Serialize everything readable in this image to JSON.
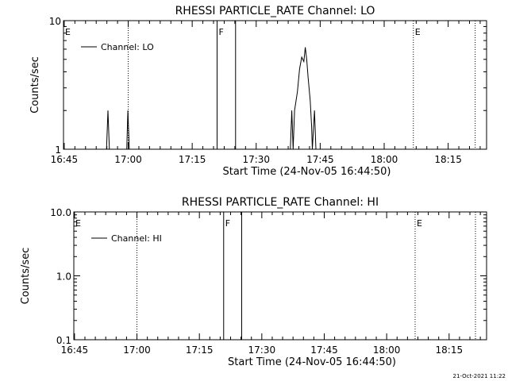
{
  "footer": {
    "timestamp": "21-Oct-2021 11:22"
  },
  "chart_data": [
    {
      "type": "line",
      "title": "RHESSI PARTICLE_RATE Channel: LO",
      "xlabel": "Start Time (24-Nov-05 16:44:50)",
      "ylabel": "Counts/sec",
      "y_scale": "log",
      "ylim": [
        1,
        10
      ],
      "y_ticks": [
        {
          "value": 1,
          "label": "1"
        },
        {
          "value": 10,
          "label": "10"
        }
      ],
      "xlim": [
        "16:44:50",
        "18:24:00"
      ],
      "x_ticks": [
        "16:45",
        "17:00",
        "17:15",
        "17:30",
        "17:45",
        "18:00",
        "18:15"
      ],
      "legend": {
        "label": "Channel: LO",
        "placement": "top-left"
      },
      "markers": [
        {
          "time": "16:44:50",
          "label": "E",
          "style": "none"
        },
        {
          "time": "17:00:00",
          "label": "",
          "style": "dotted"
        },
        {
          "time": "17:20:50",
          "label": "F",
          "style": "solid"
        },
        {
          "time": "17:25:10",
          "label": "",
          "style": "solid"
        },
        {
          "time": "18:06:50",
          "label": "E",
          "style": "dotted"
        },
        {
          "time": "18:21:20",
          "label": "",
          "style": "dotted"
        }
      ],
      "series": [
        {
          "name": "Channel: LO",
          "points": [
            [
              "16:54:55",
              1
            ],
            [
              "16:55:15",
              2.0
            ],
            [
              "16:55:35",
              1
            ],
            [
              "16:59:40",
              1
            ],
            [
              "16:59:55",
              2.0
            ],
            [
              "17:00:15",
              1
            ],
            [
              "17:38:00",
              1
            ],
            [
              "17:38:20",
              2.0
            ],
            [
              "17:38:40",
              1
            ],
            [
              "17:39:00",
              2.0
            ],
            [
              "17:39:40",
              2.8
            ],
            [
              "17:40:10",
              4.2
            ],
            [
              "17:40:40",
              5.2
            ],
            [
              "17:41:10",
              4.8
            ],
            [
              "17:41:30",
              6.2
            ],
            [
              "17:41:50",
              5.0
            ],
            [
              "17:42:10",
              3.6
            ],
            [
              "17:42:40",
              2.4
            ],
            [
              "17:43:00",
              1.5
            ],
            [
              "17:43:10",
              1
            ],
            [
              "17:43:40",
              2.0
            ],
            [
              "17:44:00",
              1
            ]
          ]
        }
      ]
    },
    {
      "type": "line",
      "title": "RHESSI PARTICLE_RATE Channel: HI",
      "xlabel": "Start Time (24-Nov-05 16:44:50)",
      "ylabel": "Counts/sec",
      "y_scale": "log",
      "ylim": [
        0.1,
        10
      ],
      "y_ticks": [
        {
          "value": 0.1,
          "label": "0.1"
        },
        {
          "value": 1,
          "label": "1.0"
        },
        {
          "value": 10,
          "label": "10.0"
        }
      ],
      "xlim": [
        "16:44:50",
        "18:24:00"
      ],
      "x_ticks": [
        "16:45",
        "17:00",
        "17:15",
        "17:30",
        "17:45",
        "18:00",
        "18:15"
      ],
      "legend": {
        "label": "Channel: HI",
        "placement": "top-left"
      },
      "markers": [
        {
          "time": "16:44:50",
          "label": "E",
          "style": "none"
        },
        {
          "time": "17:00:00",
          "label": "",
          "style": "dotted"
        },
        {
          "time": "17:20:50",
          "label": "F",
          "style": "solid"
        },
        {
          "time": "17:25:10",
          "label": "",
          "style": "solid"
        },
        {
          "time": "18:06:50",
          "label": "E",
          "style": "dotted"
        },
        {
          "time": "18:21:20",
          "label": "",
          "style": "dotted"
        }
      ],
      "series": [
        {
          "name": "Channel: HI",
          "points": []
        }
      ]
    }
  ]
}
